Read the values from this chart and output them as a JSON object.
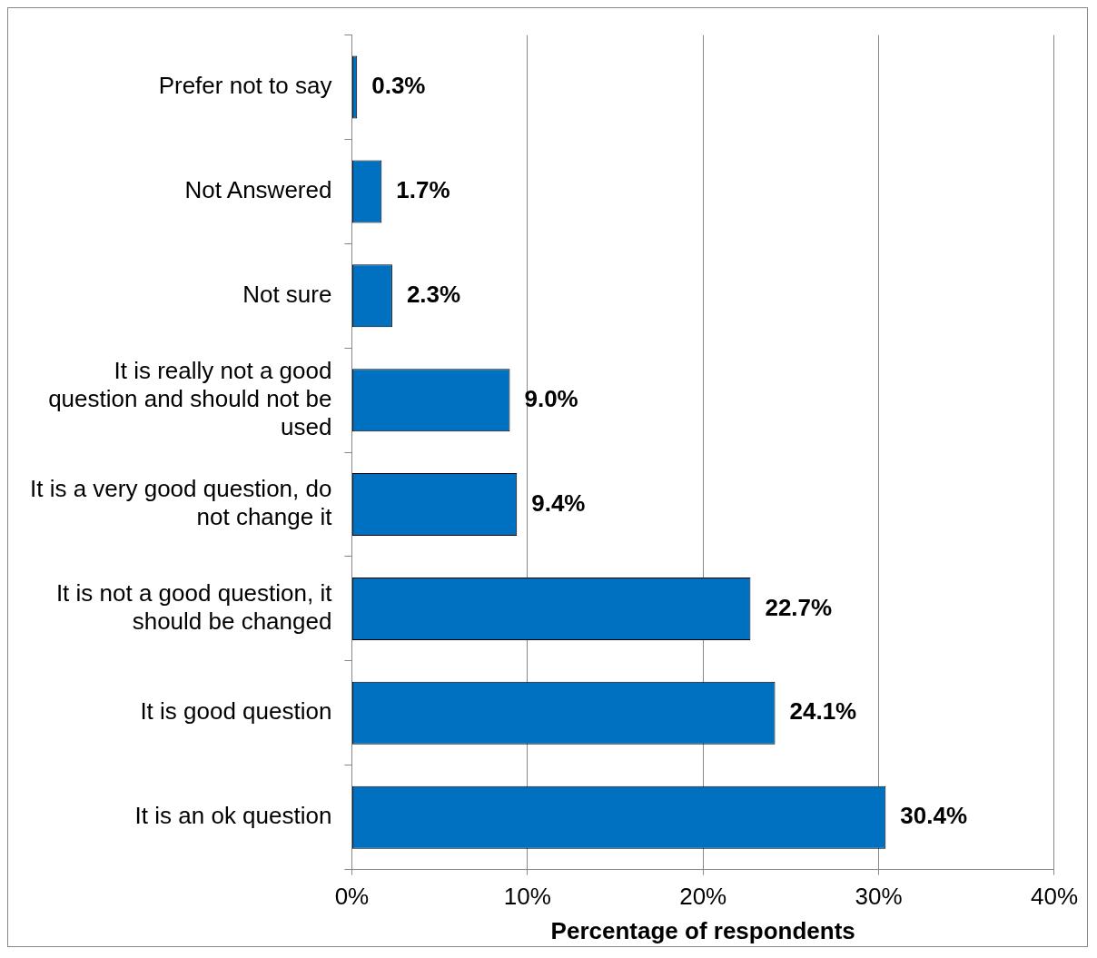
{
  "chart_data": {
    "type": "bar",
    "orientation": "horizontal",
    "xlabel": "Percentage of respondents",
    "categories": [
      "Prefer not to say",
      "Not Answered",
      "Not sure",
      "It is really not a good question and should not be used",
      "It is a very good question, do not change it",
      "It is not a good question, it should be changed",
      "It is good question",
      "It is an ok question"
    ],
    "values": [
      0.3,
      1.7,
      2.3,
      9.0,
      9.4,
      22.7,
      24.1,
      30.4
    ],
    "value_labels": [
      "0.3%",
      "1.7%",
      "2.3%",
      "9.0%",
      "9.4%",
      "22.7%",
      "24.1%",
      "30.4%"
    ],
    "color": "#0070c0",
    "xlim": [
      0,
      40
    ],
    "xticks": [
      {
        "value": 0,
        "label": "0%"
      },
      {
        "value": 10,
        "label": "10%"
      },
      {
        "value": 20,
        "label": "20%"
      },
      {
        "value": 30,
        "label": "30%"
      },
      {
        "value": 40,
        "label": "40%"
      }
    ],
    "grid": "x",
    "legend": false
  }
}
